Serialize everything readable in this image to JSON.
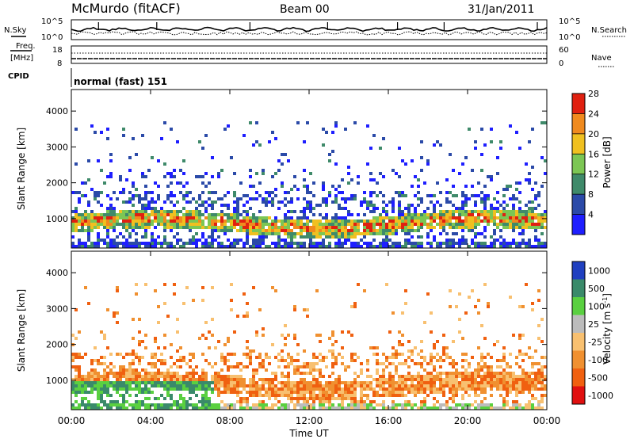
{
  "header": {
    "station": "McMurdo (fitACF)",
    "beam": "Beam 00",
    "date": "31/Jan/2011"
  },
  "strip_panels": {
    "nsky": {
      "label": "N.Sky",
      "ticks": [
        "10^5",
        "10^0"
      ]
    },
    "nsearch": {
      "label": "N.Search",
      "ticks": [
        "10^5",
        "10^0"
      ]
    },
    "freq": {
      "label_top": "Freq.",
      "label_bottom": "[MHz]",
      "ticks": [
        "18",
        "8"
      ]
    },
    "nave": {
      "label": "Nave",
      "ticks": [
        "60",
        "0"
      ]
    },
    "cpid": {
      "label": "CPID",
      "value": "normal (fast) 151"
    }
  },
  "chart_data": [
    {
      "type": "heatmap",
      "name": "power-panel",
      "xlabel": "",
      "ylabel": "Slant Range [km]",
      "x_ticks": [
        "00:00",
        "04:00",
        "08:00",
        "12:00",
        "16:00",
        "20:00",
        "00:00"
      ],
      "y_ticks": [
        "1000",
        "2000",
        "3000",
        "4000"
      ],
      "ylim": [
        180,
        4600
      ],
      "colorbar": {
        "label": "Power [dB]",
        "ticks": [
          "4",
          "8",
          "12",
          "16",
          "20",
          "24",
          "28"
        ],
        "colors": [
          "#1e1eff",
          "#2b4aa8",
          "#3f8a6a",
          "#7cc654",
          "#f0c020",
          "#f08a1e",
          "#e02010"
        ]
      }
    },
    {
      "type": "heatmap",
      "name": "velocity-panel",
      "xlabel": "Time UT",
      "ylabel": "Slant Range [km]",
      "x_ticks": [
        "00:00",
        "04:00",
        "08:00",
        "12:00",
        "16:00",
        "20:00",
        "00:00"
      ],
      "y_ticks": [
        "1000",
        "2000",
        "3000",
        "4000"
      ],
      "ylim": [
        180,
        4600
      ],
      "colorbar": {
        "label": "Velocity [m s^-1]",
        "ticks": [
          "1000",
          "500",
          "100",
          "25",
          "-25",
          "-100",
          "-500",
          "-1000"
        ],
        "colors": [
          "#2040c0",
          "#3a8a6a",
          "#5ad040",
          "#bcbcbc",
          "#f8c070",
          "#f09030",
          "#f06010",
          "#e01010"
        ]
      }
    }
  ]
}
